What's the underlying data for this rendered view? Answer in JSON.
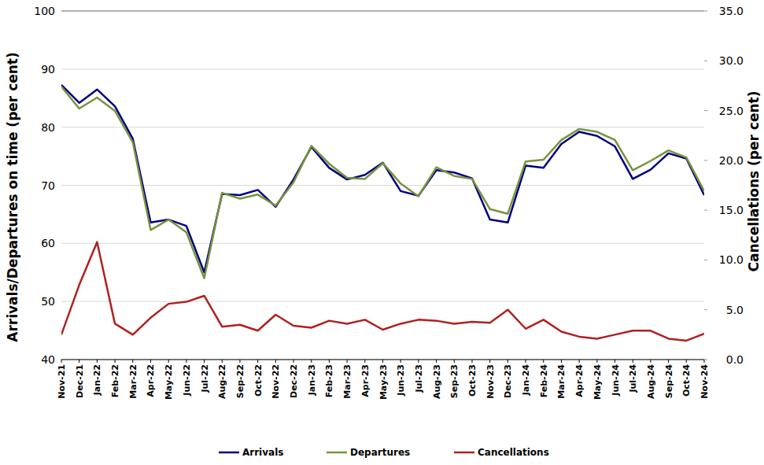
{
  "chart_data": {
    "type": "line",
    "x_label": "",
    "y_label": "Arrivals/Departures on time (per cent)",
    "y2_label": "Cancellations (per cent)",
    "categories": [
      "Nov-21",
      "Dec-21",
      "Jan-22",
      "Feb-22",
      "Mar-22",
      "Apr-22",
      "May-22",
      "Jun-22",
      "Jul-22",
      "Aug-22",
      "Sep-22",
      "Oct-22",
      "Nov-22",
      "Dec-22",
      "Jan-23",
      "Feb-23",
      "Mar-23",
      "Apr-23",
      "May-23",
      "Jun-23",
      "Jul-23",
      "Aug-23",
      "Sep-23",
      "Oct-23",
      "Nov-23",
      "Dec-23",
      "Jan-24",
      "Feb-24",
      "Mar-24",
      "Apr-24",
      "May-24",
      "Jun-24",
      "Jul-24",
      "Aug-24",
      "Sep-24",
      "Oct-24",
      "Nov-24"
    ],
    "series": [
      {
        "name": "Arrivals",
        "color": "#000080",
        "values": [
          87.3,
          84.2,
          86.5,
          83.6,
          78.0,
          63.6,
          64.1,
          63.0,
          55.0,
          68.5,
          68.3,
          69.2,
          66.3,
          71.0,
          76.6,
          73.0,
          71.0,
          71.8,
          73.9,
          69.0,
          68.2,
          72.6,
          72.2,
          71.2,
          64.1,
          63.6,
          73.4,
          73.0,
          77.1,
          79.2,
          78.5,
          76.7,
          71.1,
          72.7,
          75.5,
          74.6,
          68.3
        ]
      },
      {
        "name": "Departures",
        "color": "#77933c",
        "values": [
          87.0,
          83.2,
          85.1,
          82.8,
          77.4,
          62.3,
          64.1,
          61.9,
          54.0,
          68.7,
          67.7,
          68.4,
          66.5,
          70.5,
          76.8,
          73.7,
          71.3,
          71.1,
          73.8,
          70.3,
          68.1,
          73.1,
          71.6,
          71.1,
          65.9,
          65.1,
          74.1,
          74.4,
          77.8,
          79.7,
          79.2,
          77.8,
          72.6,
          74.2,
          76.0,
          74.8,
          69.0
        ]
      },
      {
        "name": "Cancellations",
        "color": "#b0201f",
        "axis": "y2",
        "values": [
          2.5,
          7.5,
          11.8,
          3.6,
          2.5,
          4.2,
          5.6,
          5.8,
          6.4,
          3.3,
          3.5,
          2.9,
          4.5,
          3.4,
          3.2,
          3.9,
          3.6,
          4.0,
          3.0,
          3.6,
          4.0,
          3.9,
          3.6,
          3.8,
          3.7,
          5.0,
          3.1,
          4.0,
          2.8,
          2.3,
          2.1,
          2.5,
          2.9,
          2.9,
          2.1,
          1.9,
          2.6
        ]
      }
    ],
    "ylim": [
      40,
      100
    ],
    "yticks": [
      40,
      50,
      60,
      70,
      80,
      90,
      100
    ],
    "y2lim": [
      0,
      35
    ],
    "y2ticks": [
      {
        "value": 0,
        "label": "0.0"
      },
      {
        "value": 5,
        "label": "5.0"
      },
      {
        "value": 10,
        "label": "10.0"
      },
      {
        "value": 15,
        "label": "15.0"
      },
      {
        "value": 20,
        "label": "20.0"
      },
      {
        "value": 25,
        "label": "25.0"
      },
      {
        "value": 30,
        "label": "30.0"
      },
      {
        "value": 35,
        "label": "35.0"
      }
    ],
    "grid": true,
    "legend": "bottom"
  }
}
